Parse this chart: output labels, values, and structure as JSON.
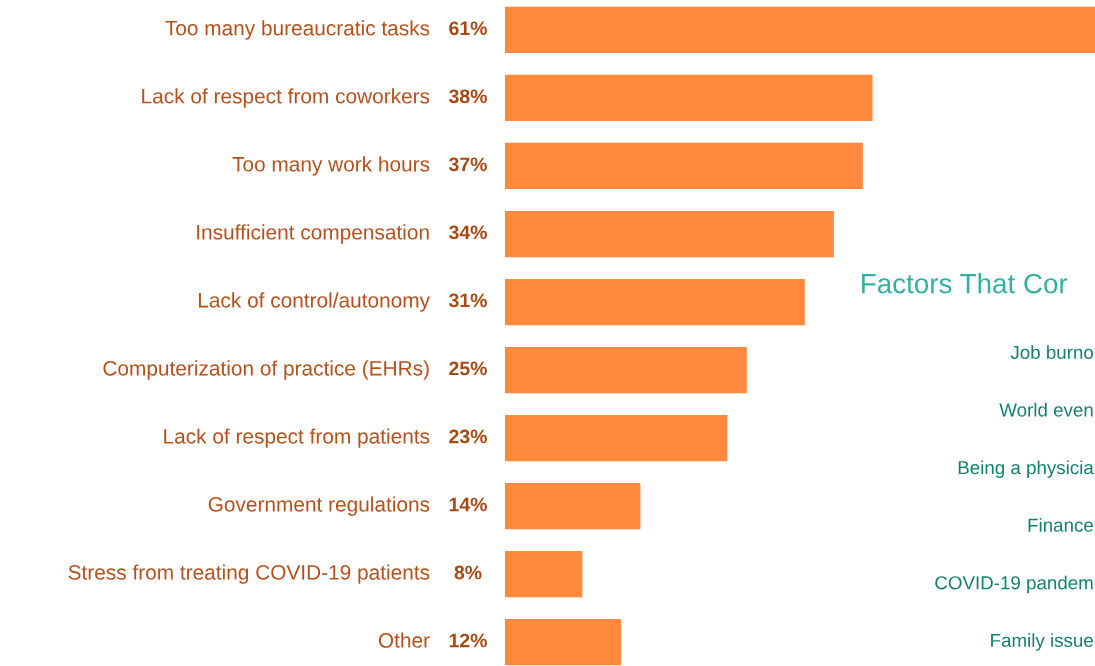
{
  "chart_data": [
    {
      "type": "bar",
      "orientation": "horizontal",
      "categories": [
        "Too many bureaucratic tasks",
        "Lack of respect from coworkers",
        "Too many work hours",
        "Insufficient compensation",
        "Lack of control/autonomy",
        "Computerization of practice (EHRs)",
        "Lack of respect from patients",
        "Government regulations",
        "Stress from treating COVID-19 patients",
        "Other"
      ],
      "values": [
        61,
        38,
        37,
        34,
        31,
        25,
        23,
        14,
        8,
        12
      ],
      "value_labels": [
        "61%",
        "38%",
        "37%",
        "34%",
        "31%",
        "25%",
        "23%",
        "14%",
        "8%",
        "12%"
      ],
      "color": "#ff8a3d"
    },
    {
      "type": "other",
      "title": "Factors That Cor",
      "annotations": [
        "Job burno",
        "World even",
        "Being a physicia",
        "Finance",
        "COVID-19 pandem",
        "Family issue"
      ]
    }
  ]
}
